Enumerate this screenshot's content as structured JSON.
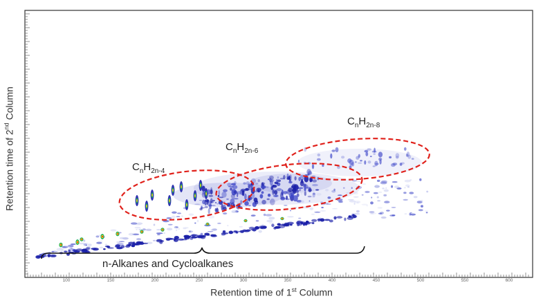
{
  "chart_data": {
    "type": "heatmap",
    "title": "",
    "xlabel_main": "Retention time of 1",
    "xlabel_sup": "st",
    "xlabel_end": " Column",
    "ylabel_main": "Retention time of 2",
    "ylabel_sup": "nd",
    "ylabel_end": " Column",
    "x_ticks": [
      "100",
      "150",
      "200",
      "250",
      "300",
      "350",
      "400",
      "450",
      "500",
      "550",
      "600"
    ],
    "colorscale": [
      "#ffffff",
      "#c8cdf0",
      "#3f48c8",
      "#1a1fa8",
      "#1fb05a",
      "#ffd11a",
      "#ff8a00",
      "#e01010"
    ],
    "annotations": [
      {
        "name": "cnh2n-4",
        "base": "C",
        "sub1": "n",
        "mid": "H",
        "sub2": "2n-4"
      },
      {
        "name": "cnh2n-6",
        "base": "C",
        "sub1": "n",
        "mid": "H",
        "sub2": "2n-6"
      },
      {
        "name": "cnh2n-8",
        "base": "C",
        "sub1": "n",
        "mid": "H",
        "sub2": "2n-8"
      }
    ],
    "brace_label": "n-Alkanes and Cycloalkanes",
    "ellipse_color": "#e0201a"
  }
}
